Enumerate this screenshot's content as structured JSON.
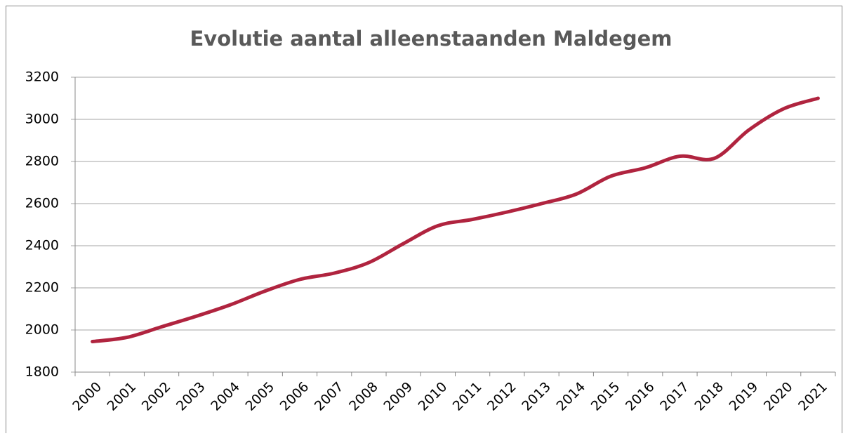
{
  "chart_data": {
    "type": "line",
    "title": "Evolutie aantal alleenstaanden Maldegem",
    "categories": [
      "2000",
      "2001",
      "2002",
      "2003",
      "2004",
      "2005",
      "2006",
      "2007",
      "2008",
      "2009",
      "2010",
      "2011",
      "2012",
      "2013",
      "2014",
      "2015",
      "2016",
      "2017",
      "2018",
      "2019",
      "2020",
      "2021"
    ],
    "series": [
      {
        "name": "Alleenstaanden",
        "color": "#b0243f",
        "values": [
          1945,
          1965,
          2015,
          2065,
          2120,
          2185,
          2240,
          2270,
          2320,
          2410,
          2495,
          2525,
          2560,
          2600,
          2645,
          2730,
          2770,
          2825,
          2815,
          2950,
          3050,
          3100
        ]
      }
    ],
    "ylim": [
      1800,
      3200
    ],
    "yticks": [
      1800,
      2000,
      2200,
      2400,
      2600,
      2800,
      3000,
      3200
    ],
    "grid": true
  }
}
